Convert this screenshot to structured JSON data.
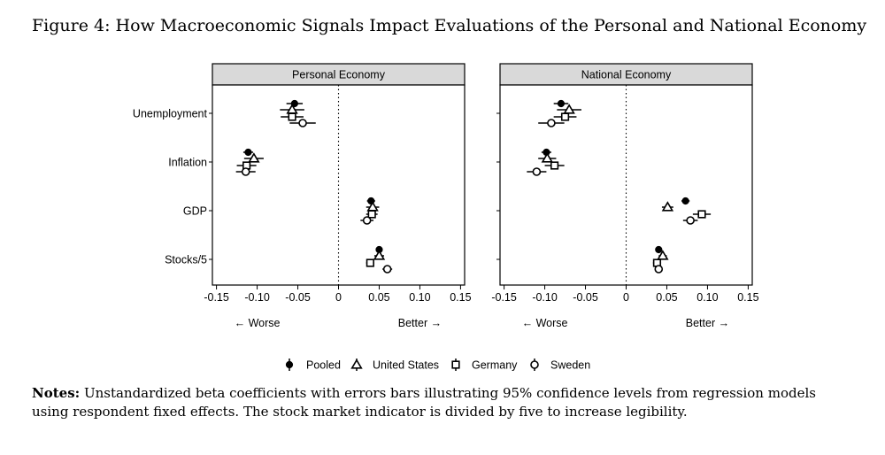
{
  "figure": {
    "title": "Figure 4: How Macroeconomic Signals Impact Evaluations of the Personal and National Economy",
    "notes_label": "Notes:",
    "notes_text": "Unstandardized beta coefficients with errors bars illustrating 95% confidence levels from regression models using respondent fixed effects. The stock market indicator is divided by five to increase legibility."
  },
  "chart_data": {
    "type": "scatter",
    "categories": [
      "Unemployment",
      "Inflation",
      "GDP",
      "Stocks/5"
    ],
    "xlim": [
      -0.155,
      0.155
    ],
    "xticks": [
      -0.15,
      -0.1,
      -0.05,
      0,
      0.05,
      0.1,
      0.15
    ],
    "xtick_labels": [
      "-0.15",
      "-0.10",
      "-0.05",
      "0",
      "0.05",
      "0.10",
      "0.15"
    ],
    "xlabel_left": "← Worse",
    "xlabel_right": "Better →",
    "reference_line": 0,
    "legend_position": "bottom",
    "series": [
      {
        "name": "Pooled",
        "marker": "filled-circle"
      },
      {
        "name": "United States",
        "marker": "triangle"
      },
      {
        "name": "Germany",
        "marker": "square"
      },
      {
        "name": "Sweden",
        "marker": "circle"
      }
    ],
    "panels": [
      {
        "title": "Personal Economy",
        "estimates": [
          [
            [
              -0.054,
              -0.064,
              -0.044
            ],
            [
              -0.057,
              -0.072,
              -0.042
            ],
            [
              -0.057,
              -0.071,
              -0.043
            ],
            [
              -0.044,
              -0.06,
              -0.028
            ]
          ],
          [
            [
              -0.111,
              -0.117,
              -0.105
            ],
            [
              -0.104,
              -0.116,
              -0.092
            ],
            [
              -0.113,
              -0.125,
              -0.101
            ],
            [
              -0.114,
              -0.126,
              -0.102
            ]
          ],
          [
            [
              0.04,
              0.035,
              0.045
            ],
            [
              0.042,
              0.034,
              0.05
            ],
            [
              0.041,
              0.034,
              0.048
            ],
            [
              0.035,
              0.027,
              0.043
            ]
          ],
          [
            [
              0.05,
              0.046,
              0.054
            ],
            [
              0.05,
              0.044,
              0.056
            ],
            [
              0.039,
              0.034,
              0.044
            ],
            [
              0.06,
              0.054,
              0.066
            ]
          ]
        ]
      },
      {
        "title": "National Economy",
        "estimates": [
          [
            [
              -0.08,
              -0.089,
              -0.071
            ],
            [
              -0.07,
              -0.085,
              -0.055
            ],
            [
              -0.075,
              -0.089,
              -0.061
            ],
            [
              -0.092,
              -0.108,
              -0.076
            ]
          ],
          [
            [
              -0.098,
              -0.104,
              -0.092
            ],
            [
              -0.097,
              -0.108,
              -0.086
            ],
            [
              -0.088,
              -0.1,
              -0.076
            ],
            [
              -0.11,
              -0.122,
              -0.098
            ]
          ],
          [
            [
              0.073,
              0.068,
              0.078
            ],
            [
              0.051,
              0.044,
              0.058
            ],
            [
              0.093,
              0.082,
              0.104
            ],
            [
              0.079,
              0.07,
              0.088
            ]
          ],
          [
            [
              0.04,
              0.037,
              0.043
            ],
            [
              0.045,
              0.04,
              0.05
            ],
            [
              0.038,
              0.033,
              0.043
            ],
            [
              0.04,
              0.036,
              0.044
            ]
          ]
        ]
      }
    ]
  }
}
